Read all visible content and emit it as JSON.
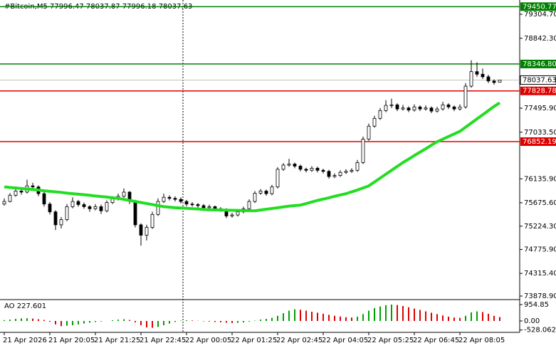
{
  "chart_data": {
    "type": "candlestick",
    "title": "#Bitcoin,M5  77996.47 78037.87 77996.18 78037.63",
    "categories": [
      "21 Apr 2026",
      null,
      null,
      null,
      null,
      null,
      null,
      null,
      "21 Apr 20:05",
      null,
      null,
      null,
      null,
      null,
      null,
      null,
      "21 Apr 21:25",
      null,
      null,
      null,
      null,
      null,
      null,
      null,
      "21 Apr 22:45",
      null,
      null,
      null,
      null,
      null,
      null,
      null,
      "22 Apr 00:05",
      null,
      null,
      null,
      null,
      null,
      null,
      null,
      "22 Apr 01:25",
      null,
      null,
      null,
      null,
      null,
      null,
      null,
      "22 Apr 02:45",
      null,
      null,
      null,
      null,
      null,
      null,
      null,
      "22 Apr 04:05",
      null,
      null,
      null,
      null,
      null,
      null,
      null,
      "22 Apr 05:25",
      null,
      null,
      null,
      null,
      null,
      null,
      null,
      "22 Apr 06:45",
      null,
      null,
      null,
      null,
      null,
      null,
      null,
      "22 Apr 08:05",
      null,
      null,
      null,
      null,
      null,
      null,
      null
    ],
    "ohlc": [
      [
        75650,
        75760,
        75620,
        75700
      ],
      [
        75700,
        75860,
        75680,
        75820
      ],
      [
        75820,
        75960,
        75790,
        75900
      ],
      [
        75900,
        75950,
        75830,
        75880
      ],
      [
        75880,
        76120,
        75850,
        76000
      ],
      [
        76000,
        76060,
        75930,
        75980
      ],
      [
        75980,
        76010,
        75800,
        75850
      ],
      [
        75850,
        75880,
        75600,
        75650
      ],
      [
        75650,
        75690,
        75450,
        75500
      ],
      [
        75500,
        75530,
        75150,
        75250
      ],
      [
        75250,
        75400,
        75180,
        75350
      ],
      [
        75350,
        75650,
        75320,
        75600
      ],
      [
        75600,
        75780,
        75570,
        75700
      ],
      [
        75700,
        75730,
        75600,
        75640
      ],
      [
        75640,
        75680,
        75560,
        75600
      ],
      [
        75600,
        75630,
        75500,
        75560
      ],
      [
        75560,
        75650,
        75530,
        75600
      ],
      [
        75600,
        75640,
        75460,
        75520
      ],
      [
        75520,
        75720,
        75490,
        75680
      ],
      [
        75680,
        75800,
        75650,
        75760
      ],
      [
        75760,
        75850,
        75720,
        75800
      ],
      [
        75800,
        75950,
        75770,
        75880
      ],
      [
        75880,
        75900,
        75650,
        75700
      ],
      [
        75700,
        75730,
        75200,
        75250
      ],
      [
        75250,
        75280,
        74850,
        75050
      ],
      [
        75050,
        75250,
        74950,
        75200
      ],
      [
        75200,
        75500,
        75170,
        75450
      ],
      [
        75450,
        75760,
        75420,
        75700
      ],
      [
        75700,
        75850,
        75670,
        75780
      ],
      [
        75780,
        75820,
        75720,
        75760
      ],
      [
        75760,
        75800,
        75700,
        75740
      ],
      [
        75740,
        75780,
        75660,
        75700
      ],
      [
        75700,
        75730,
        75610,
        75650
      ],
      [
        75650,
        75690,
        75600,
        75640
      ],
      [
        75640,
        75670,
        75580,
        75620
      ],
      [
        75620,
        75650,
        75540,
        75580
      ],
      [
        75580,
        75640,
        75550,
        75600
      ],
      [
        75600,
        75620,
        75520,
        75560
      ],
      [
        75560,
        75590,
        75500,
        75540
      ],
      [
        75540,
        75570,
        75380,
        75420
      ],
      [
        75420,
        75480,
        75390,
        75440
      ],
      [
        75440,
        75540,
        75410,
        75500
      ],
      [
        75500,
        75600,
        75470,
        75560
      ],
      [
        75560,
        75740,
        75530,
        75700
      ],
      [
        75700,
        75900,
        75670,
        75860
      ],
      [
        75860,
        75940,
        75830,
        75900
      ],
      [
        75900,
        75930,
        75810,
        75850
      ],
      [
        75850,
        76020,
        75820,
        75980
      ],
      [
        75980,
        76360,
        75950,
        76320
      ],
      [
        76320,
        76440,
        76290,
        76400
      ],
      [
        76400,
        76520,
        76370,
        76420
      ],
      [
        76420,
        76450,
        76340,
        76380
      ],
      [
        76380,
        76410,
        76280,
        76320
      ],
      [
        76320,
        76350,
        76260,
        76300
      ],
      [
        76300,
        76380,
        76270,
        76340
      ],
      [
        76340,
        76370,
        76260,
        76300
      ],
      [
        76300,
        76330,
        76240,
        76280
      ],
      [
        76280,
        76310,
        76140,
        76180
      ],
      [
        76180,
        76240,
        76150,
        76200
      ],
      [
        76200,
        76300,
        76170,
        76260
      ],
      [
        76260,
        76320,
        76230,
        76280
      ],
      [
        76280,
        76340,
        76250,
        76300
      ],
      [
        76300,
        76500,
        76270,
        76450
      ],
      [
        76450,
        76950,
        76420,
        76900
      ],
      [
        76900,
        77200,
        76870,
        77150
      ],
      [
        77150,
        77350,
        77120,
        77300
      ],
      [
        77300,
        77500,
        77270,
        77450
      ],
      [
        77450,
        77650,
        77420,
        77550
      ],
      [
        77550,
        77680,
        77500,
        77560
      ],
      [
        77560,
        77590,
        77440,
        77480
      ],
      [
        77480,
        77560,
        77450,
        77500
      ],
      [
        77500,
        77530,
        77420,
        77460
      ],
      [
        77460,
        77570,
        77430,
        77520
      ],
      [
        77520,
        77550,
        77440,
        77480
      ],
      [
        77480,
        77550,
        77450,
        77500
      ],
      [
        77500,
        77530,
        77400,
        77440
      ],
      [
        77440,
        77520,
        77410,
        77480
      ],
      [
        77480,
        77620,
        77450,
        77560
      ],
      [
        77560,
        77590,
        77480,
        77520
      ],
      [
        77520,
        77550,
        77440,
        77480
      ],
      [
        77480,
        77570,
        77450,
        77520
      ],
      [
        77520,
        77980,
        77490,
        77920
      ],
      [
        77920,
        78420,
        77890,
        78200
      ],
      [
        78200,
        78380,
        78100,
        78150
      ],
      [
        78150,
        78260,
        78060,
        78100
      ],
      [
        78100,
        78140,
        77980,
        78020
      ],
      [
        78020,
        78050,
        77950,
        77990
      ],
      [
        77996.47,
        78037.87,
        77996.18,
        78037.63
      ]
    ],
    "ma": {
      "color": "#22dd22",
      "values": [
        75980,
        75970,
        75960,
        75950,
        75940,
        75930,
        75920,
        75905,
        75895,
        75885,
        75875,
        75860,
        75850,
        75840,
        75830,
        75820,
        75805,
        75795,
        75785,
        75770,
        75760,
        75740,
        75720,
        75700,
        75680,
        75660,
        75640,
        75620,
        75600,
        75590,
        75580,
        75575,
        75570,
        75560,
        75555,
        75545,
        75540,
        75538,
        75535,
        75532,
        75530,
        75528,
        75525,
        75522,
        75520,
        75535,
        75550,
        75565,
        75580,
        75595,
        75610,
        75620,
        75630,
        75660,
        75690,
        75720,
        75745,
        75770,
        75800,
        75825,
        75850,
        75885,
        75920,
        75960,
        76000,
        76075,
        76150,
        76225,
        76300,
        76375,
        76450,
        76515,
        76585,
        76650,
        76715,
        76785,
        76850,
        76900,
        76950,
        77000,
        77050,
        77130,
        77210,
        77290,
        77370,
        77450,
        77530,
        77600
      ]
    },
    "ylim": [
      73824,
      79579
    ],
    "yticks": [
      {
        "value": 79304.7,
        "label": "79304.70"
      },
      {
        "value": 78842.3,
        "label": "78842.30"
      },
      {
        "value": 77495.9,
        "label": "77495.90"
      },
      {
        "value": 77033.5,
        "label": "77033.50"
      },
      {
        "value": 76135.9,
        "label": "76135.90"
      },
      {
        "value": 75675.6,
        "label": "75675.60"
      },
      {
        "value": 75224.3,
        "label": "75224.30"
      },
      {
        "value": 74775.9,
        "label": "74775.90"
      },
      {
        "value": 74315.4,
        "label": "74315.40"
      },
      {
        "value": 73878.9,
        "label": "73878.90"
      }
    ],
    "levels": [
      {
        "value": 79450.77,
        "label": "79450.77",
        "color": "#008000"
      },
      {
        "value": 78346.8,
        "label": "78346.80",
        "color": "#008000"
      },
      {
        "value": 77828.78,
        "label": "77828.78",
        "color": "#e00000"
      },
      {
        "value": 76852.19,
        "label": "76852.19",
        "color": "#e00000"
      }
    ],
    "current_price": 78037.63,
    "ao": {
      "title": "AO 227.601",
      "up_color": "#00a000",
      "down_color": "#e00000",
      "values": [
        50,
        80,
        120,
        150,
        160,
        140,
        100,
        60,
        -50,
        -200,
        -300,
        -280,
        -250,
        -200,
        -150,
        -100,
        -60,
        -30,
        0,
        40,
        80,
        100,
        60,
        -80,
        -250,
        -380,
        -400,
        -350,
        -250,
        -150,
        -60,
        20,
        40,
        30,
        10,
        -20,
        -40,
        -60,
        -80,
        -100,
        -120,
        -110,
        -90,
        -40,
        20,
        80,
        120,
        180,
        300,
        450,
        600,
        680,
        650,
        600,
        540,
        480,
        420,
        360,
        300,
        260,
        220,
        200,
        250,
        400,
        600,
        750,
        850,
        920,
        954,
        930,
        870,
        800,
        720,
        640,
        560,
        480,
        400,
        320,
        250,
        200,
        180,
        300,
        500,
        560,
        520,
        420,
        300,
        228
      ],
      "ylim": [
        -664,
        1204
      ],
      "yticks": [
        954.85,
        {
          "value": 0,
          "label": "0.00"
        },
        -528.062
      ]
    }
  }
}
